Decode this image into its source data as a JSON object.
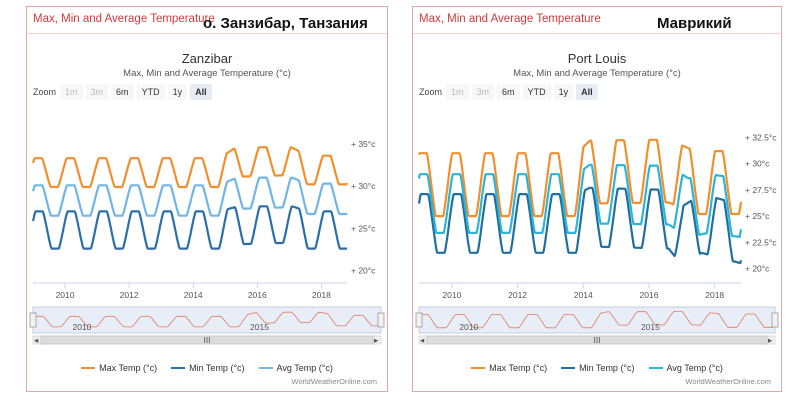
{
  "chart_data": [
    {
      "type": "line",
      "header_title": "Max, Min and Average Temperature",
      "annotation": "о. Занзибар, Танзания",
      "title": "Zanzibar",
      "subtitle": "Max, Min and Average Temperature (°c)",
      "zoom_label": "Zoom",
      "zoom_buttons": [
        {
          "label": "1m",
          "state": "disabled"
        },
        {
          "label": "3m",
          "state": "disabled"
        },
        {
          "label": "6m",
          "state": "normal"
        },
        {
          "label": "YTD",
          "state": "normal"
        },
        {
          "label": "1y",
          "state": "normal"
        },
        {
          "label": "All",
          "state": "selected"
        }
      ],
      "x_range": [
        2009.0,
        2018.8
      ],
      "x_ticks": [
        2010,
        2012,
        2014,
        2016,
        2018
      ],
      "y_range": [
        19,
        37
      ],
      "y_ticks": [
        {
          "value": 20,
          "label": "+ 20°c"
        },
        {
          "value": 25,
          "label": "+ 25°c"
        },
        {
          "value": 30,
          "label": "+ 30°c"
        },
        {
          "value": 35,
          "label": "+ 35°c"
        }
      ],
      "navigator_ticks": [
        {
          "value": 2010,
          "label": "2010"
        },
        {
          "value": 2015,
          "label": "2015"
        }
      ],
      "grid": false,
      "legend_position": "bottom",
      "series": [
        {
          "name": "Max Temp (°c)",
          "color": "#f28f2c",
          "mean": 31.6,
          "amplitude": 1.7,
          "peak_month": 2.0,
          "trend": [
            [
              2009.0,
              0
            ],
            [
              2014.8,
              0
            ],
            [
              2015.3,
              1.2
            ],
            [
              2017.0,
              1.4
            ],
            [
              2017.6,
              0.3
            ],
            [
              2018.8,
              0.3
            ]
          ]
        },
        {
          "name": "Min Temp (°c)",
          "color": "#2a6fa8",
          "mean": 24.8,
          "amplitude": 2.2,
          "peak_month": 2.3,
          "trend": [
            [
              2009.0,
              0
            ],
            [
              2014.8,
              0
            ],
            [
              2015.3,
              0.5
            ],
            [
              2017.0,
              0.7
            ],
            [
              2017.6,
              0
            ],
            [
              2018.8,
              0
            ]
          ]
        },
        {
          "name": "Avg Temp (°c)",
          "color": "#6fb6e6",
          "mean": 28.3,
          "amplitude": 1.8,
          "peak_month": 2.1,
          "trend": [
            [
              2009.0,
              0
            ],
            [
              2014.8,
              0
            ],
            [
              2015.3,
              0.8
            ],
            [
              2017.0,
              1.0
            ],
            [
              2017.6,
              0.2
            ],
            [
              2018.8,
              0.2
            ]
          ]
        }
      ],
      "credit": "WorldWeatherOnline.com",
      "scroll_handle": "III"
    },
    {
      "type": "line",
      "header_title": "Max, Min and Average Temperature",
      "annotation": "Маврикий",
      "title": "Port Louis",
      "subtitle": "Max, Min and Average Temperature (°c)",
      "zoom_label": "Zoom",
      "zoom_buttons": [
        {
          "label": "1m",
          "state": "disabled"
        },
        {
          "label": "3m",
          "state": "disabled"
        },
        {
          "label": "6m",
          "state": "normal"
        },
        {
          "label": "YTD",
          "state": "normal"
        },
        {
          "label": "1y",
          "state": "normal"
        },
        {
          "label": "All",
          "state": "selected"
        }
      ],
      "x_range": [
        2009.0,
        2018.8
      ],
      "x_ticks": [
        2010,
        2012,
        2014,
        2016,
        2018
      ],
      "y_range": [
        19,
        33.5
      ],
      "y_ticks": [
        {
          "value": 20,
          "label": "+ 20°c"
        },
        {
          "value": 22.5,
          "label": "+ 22.5°c"
        },
        {
          "value": 25,
          "label": "+ 25°c"
        },
        {
          "value": 27.5,
          "label": "+ 27.5°c"
        },
        {
          "value": 30,
          "label": "+ 30°c"
        },
        {
          "value": 32.5,
          "label": "+ 32.5°c"
        }
      ],
      "navigator_ticks": [
        {
          "value": 2010,
          "label": "2010"
        },
        {
          "value": 2015,
          "label": "2015"
        }
      ],
      "grid": false,
      "legend_position": "bottom",
      "series": [
        {
          "name": "Max Temp (°c)",
          "color": "#f28f2c",
          "mean": 28.0,
          "amplitude": 3.0,
          "peak_month": 1.5,
          "trend": [
            [
              2009.0,
              0
            ],
            [
              2013.8,
              0
            ],
            [
              2014.2,
              1.2
            ],
            [
              2016.6,
              1.3
            ],
            [
              2017.4,
              0.2
            ],
            [
              2018.8,
              0.2
            ]
          ]
        },
        {
          "name": "Min Temp (°c)",
          "color": "#1f6fa0",
          "mean": 24.3,
          "amplitude": 2.8,
          "peak_month": 2.0,
          "trend": [
            [
              2009.0,
              0
            ],
            [
              2013.8,
              0
            ],
            [
              2014.2,
              0.6
            ],
            [
              2016.6,
              0.4
            ],
            [
              2017.0,
              -1.2
            ],
            [
              2017.6,
              0
            ],
            [
              2018.8,
              -1.0
            ]
          ]
        },
        {
          "name": "Avg Temp (°c)",
          "color": "#2bb5d8",
          "mean": 26.2,
          "amplitude": 2.8,
          "peak_month": 1.7,
          "trend": [
            [
              2009.0,
              0
            ],
            [
              2013.8,
              0
            ],
            [
              2014.2,
              0.9
            ],
            [
              2016.6,
              0.8
            ],
            [
              2017.2,
              -0.4
            ],
            [
              2017.8,
              0
            ],
            [
              2018.8,
              -0.4
            ]
          ]
        }
      ],
      "credit": "WorldWeatherOnline.com",
      "scroll_handle": "III"
    }
  ]
}
